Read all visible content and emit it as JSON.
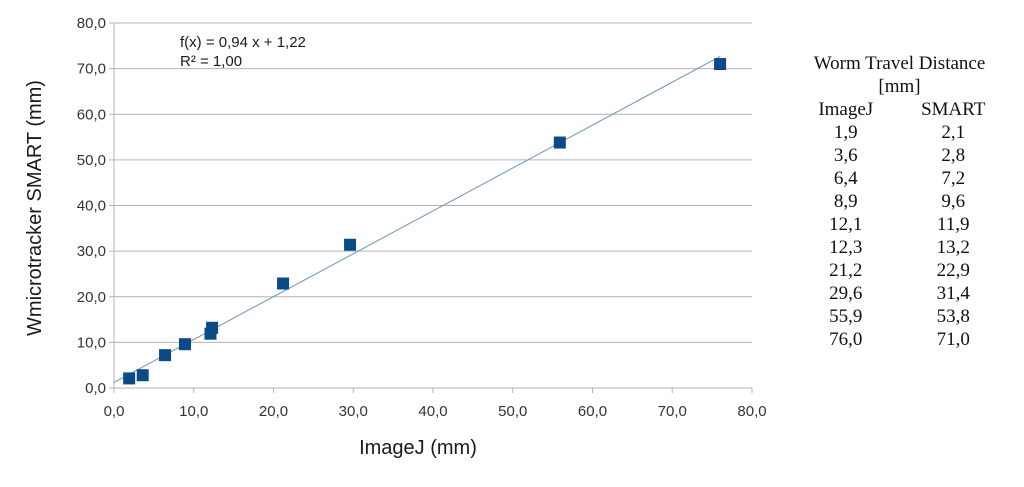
{
  "chart_data": {
    "type": "scatter",
    "xlabel": "ImageJ (mm)",
    "ylabel": "Wmicrotracker SMART (mm)",
    "xlim": [
      0,
      80
    ],
    "ylim": [
      0,
      80
    ],
    "x_ticks": [
      "0,0",
      "10,0",
      "20,0",
      "30,0",
      "40,0",
      "50,0",
      "60,0",
      "70,0",
      "80,0"
    ],
    "y_ticks": [
      "0,0",
      "10,0",
      "20,0",
      "30,0",
      "40,0",
      "50,0",
      "60,0",
      "70,0",
      "80,0"
    ],
    "grid": "horizontal",
    "marker_color": "#0b4a86",
    "trendline_color": "#6a93bf",
    "x": [
      1.9,
      3.6,
      6.4,
      8.9,
      12.1,
      12.3,
      21.2,
      29.6,
      55.9,
      76.0
    ],
    "y": [
      2.1,
      2.8,
      7.2,
      9.6,
      11.9,
      13.2,
      22.9,
      31.4,
      53.8,
      71.0
    ],
    "trendline": {
      "slope": 0.94,
      "intercept": 1.22,
      "equation": "f(x) = 0,94 x + 1,22",
      "r_squared": "R² = 1,00"
    }
  },
  "table": {
    "title_line1": "Worm Travel Distance",
    "title_line2": "[mm]",
    "headers": [
      "ImageJ",
      "SMART"
    ],
    "rows": [
      [
        "1,9",
        "2,1"
      ],
      [
        "3,6",
        "2,8"
      ],
      [
        "6,4",
        "7,2"
      ],
      [
        "8,9",
        "9,6"
      ],
      [
        "12,1",
        "11,9"
      ],
      [
        "12,3",
        "13,2"
      ],
      [
        "21,2",
        "22,9"
      ],
      [
        "29,6",
        "31,4"
      ],
      [
        "55,9",
        "53,8"
      ],
      [
        "76,0",
        "71,0"
      ]
    ]
  }
}
